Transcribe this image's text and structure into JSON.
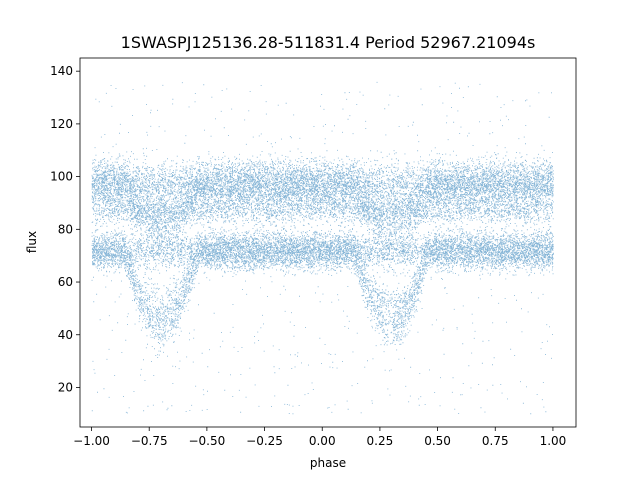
{
  "chart_data": {
    "type": "scatter",
    "title": "1SWASPJ125136.28-511831.4 Period 52967.21094s",
    "xlabel": "phase",
    "ylabel": "flux",
    "xlim": [
      -1.05,
      1.1
    ],
    "ylim": [
      5,
      145
    ],
    "xticks": [
      -1.0,
      -0.75,
      -0.5,
      -0.25,
      0.0,
      0.25,
      0.5,
      0.75,
      1.0
    ],
    "xtick_labels": [
      "−1.00",
      "−0.75",
      "−0.50",
      "−0.25",
      "0.00",
      "0.25",
      "0.50",
      "0.75",
      "1.00"
    ],
    "yticks": [
      20,
      40,
      60,
      80,
      100,
      120,
      140
    ],
    "ytick_labels": [
      "20",
      "40",
      "60",
      "80",
      "100",
      "120",
      "140"
    ],
    "grid": false,
    "legend": "none",
    "marker_color": "#1f77b4",
    "x_range": [
      -1.0,
      1.0
    ],
    "bands": [
      {
        "name": "upper",
        "center": 97,
        "spread": 4.5
      },
      {
        "name": "middle",
        "center": 87,
        "spread": 2.5
      },
      {
        "name": "lower",
        "center": 72,
        "spread": 3.5
      }
    ],
    "eclipse": {
      "phase_centers": [
        -0.7,
        0.3
      ],
      "phase_width": 0.16,
      "min_flux": 40,
      "upper_band_dip_flux": 80
    },
    "outlier_range": [
      10,
      136
    ]
  }
}
